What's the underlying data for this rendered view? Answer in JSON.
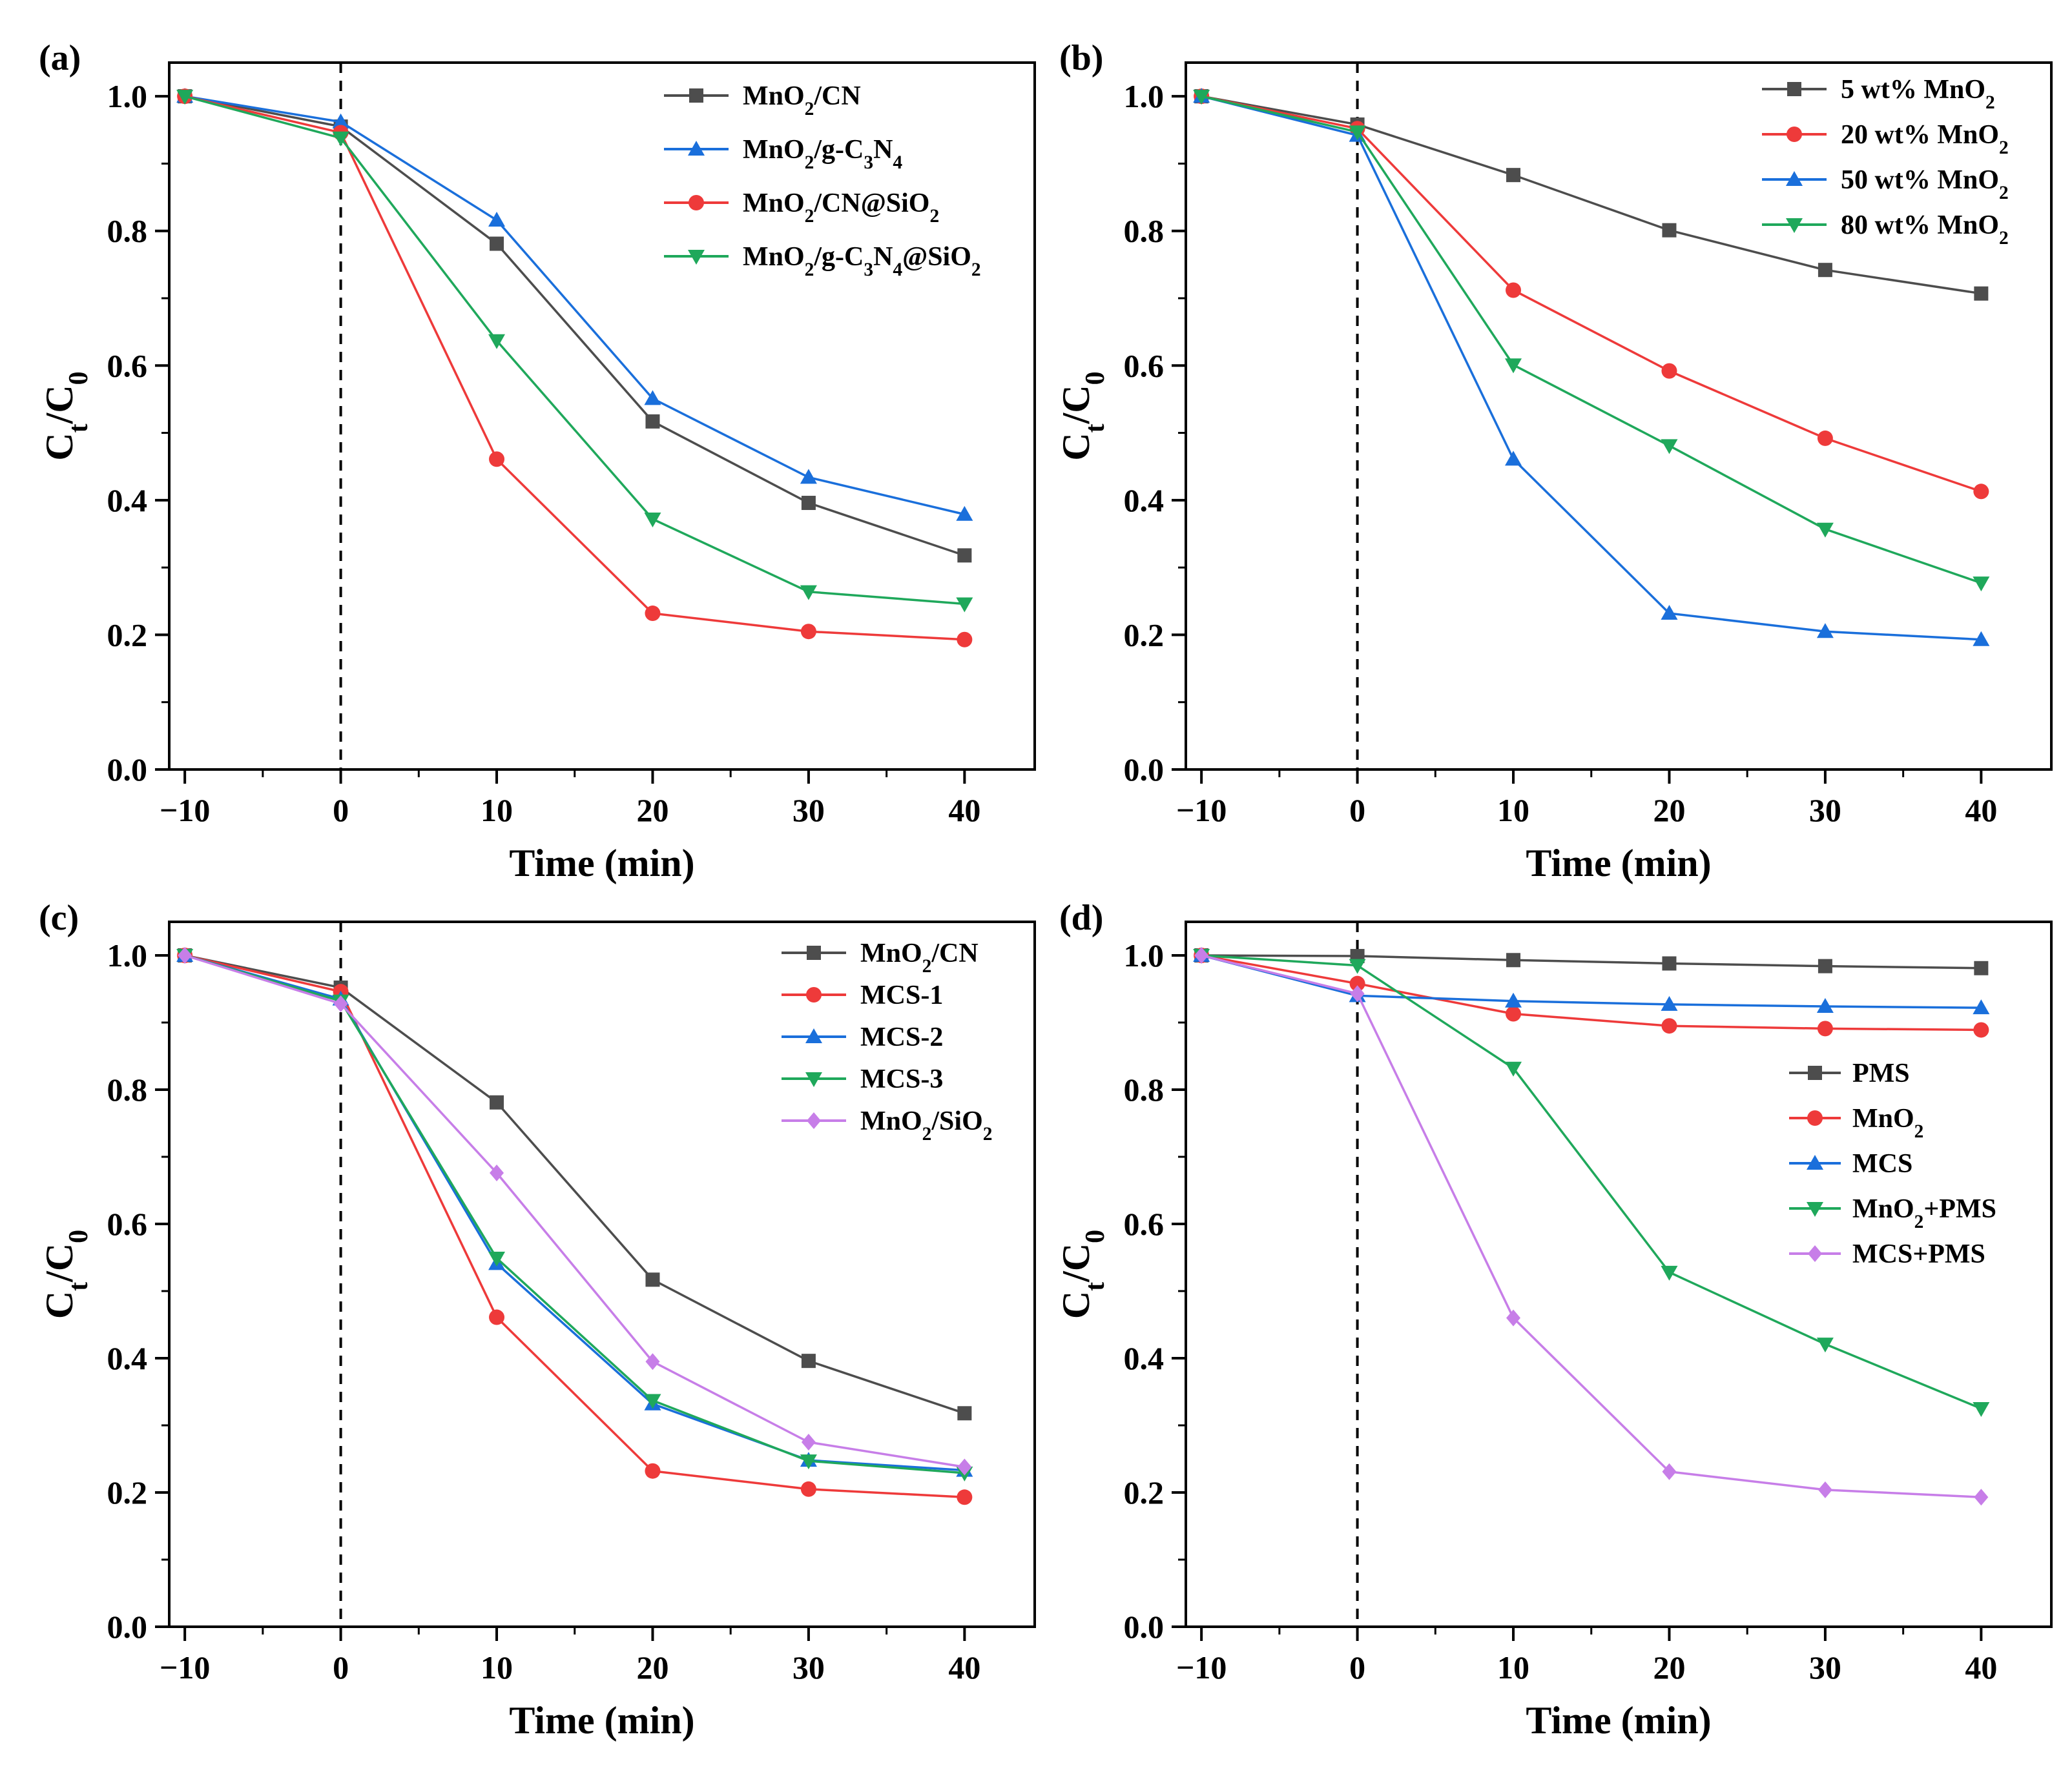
{
  "chart_data": [
    {
      "type": "line",
      "panel": "(a)",
      "xlabel": "Time (min)",
      "ylabel": "Ct/C0",
      "x": [
        -10,
        0,
        10,
        20,
        30,
        40
      ],
      "xlim": [
        -11,
        44.5
      ],
      "ylim": [
        0,
        1.05
      ],
      "xticks": [
        -10,
        0,
        10,
        20,
        30,
        40
      ],
      "yticks": [
        0.0,
        0.2,
        0.4,
        0.6,
        0.8,
        1.0
      ],
      "legend_position": "top-right",
      "series": [
        {
          "name": "MnO2/CN",
          "color": "#4d4d4d",
          "marker": "square",
          "values": [
            1.0,
            0.955,
            0.781,
            0.517,
            0.396,
            0.318
          ]
        },
        {
          "name": "MnO2/g-C3N4",
          "color": "#1a6fdb",
          "marker": "triangle-up",
          "values": [
            1.0,
            0.962,
            0.816,
            0.551,
            0.434,
            0.379
          ]
        },
        {
          "name": "MnO2/CN@SiO2",
          "color": "#ee3a3a",
          "marker": "circle",
          "values": [
            1.0,
            0.946,
            0.461,
            0.232,
            0.205,
            0.193
          ]
        },
        {
          "name": "MnO2/g-C3N4@SiO2",
          "color": "#1fa85b",
          "marker": "triangle-down",
          "values": [
            1.0,
            0.938,
            0.637,
            0.372,
            0.264,
            0.246
          ]
        }
      ]
    },
    {
      "type": "line",
      "panel": "(b)",
      "xlabel": "Time (min)",
      "ylabel": "Ct/C0",
      "x": [
        -10,
        0,
        10,
        20,
        30,
        40
      ],
      "xlim": [
        -11,
        44.5
      ],
      "ylim": [
        0,
        1.05
      ],
      "xticks": [
        -10,
        0,
        10,
        20,
        30,
        40
      ],
      "yticks": [
        0.0,
        0.2,
        0.4,
        0.6,
        0.8,
        1.0
      ],
      "legend_position": "top-right",
      "series": [
        {
          "name": "5 wt% MnO2",
          "color": "#4d4d4d",
          "marker": "square",
          "values": [
            1.0,
            0.958,
            0.883,
            0.801,
            0.742,
            0.707
          ]
        },
        {
          "name": "20 wt% MnO2",
          "color": "#ee3a3a",
          "marker": "circle",
          "values": [
            1.0,
            0.952,
            0.712,
            0.592,
            0.492,
            0.413
          ]
        },
        {
          "name": "50 wt% MnO2",
          "color": "#1a6fdb",
          "marker": "triangle-up",
          "values": [
            1.0,
            0.942,
            0.461,
            0.232,
            0.205,
            0.193
          ]
        },
        {
          "name": "80 wt% MnO2",
          "color": "#1fa85b",
          "marker": "triangle-down",
          "values": [
            1.0,
            0.947,
            0.601,
            0.481,
            0.357,
            0.277
          ]
        }
      ]
    },
    {
      "type": "line",
      "panel": "(c)",
      "xlabel": "Time (min)",
      "ylabel": "Ct/C0",
      "x": [
        -10,
        0,
        10,
        20,
        30,
        40
      ],
      "xlim": [
        -11,
        44.5
      ],
      "ylim": [
        0,
        1.05
      ],
      "xticks": [
        -10,
        0,
        10,
        20,
        30,
        40
      ],
      "yticks": [
        0.0,
        0.2,
        0.4,
        0.6,
        0.8,
        1.0
      ],
      "legend_position": "top-right",
      "series": [
        {
          "name": "MnO2/CN",
          "color": "#4d4d4d",
          "marker": "square",
          "values": [
            1.0,
            0.952,
            0.781,
            0.517,
            0.396,
            0.318
          ]
        },
        {
          "name": "MCS-1",
          "color": "#ee3a3a",
          "marker": "circle",
          "values": [
            1.0,
            0.946,
            0.461,
            0.232,
            0.205,
            0.193
          ]
        },
        {
          "name": "MCS-2",
          "color": "#1a6fdb",
          "marker": "triangle-up",
          "values": [
            1.0,
            0.935,
            0.541,
            0.332,
            0.248,
            0.233
          ]
        },
        {
          "name": "MCS-3",
          "color": "#1fa85b",
          "marker": "triangle-down",
          "values": [
            1.0,
            0.932,
            0.549,
            0.337,
            0.247,
            0.229
          ]
        },
        {
          "name": "MnO2/SiO2",
          "color": "#c77ee8",
          "marker": "diamond",
          "values": [
            1.0,
            0.928,
            0.676,
            0.395,
            0.275,
            0.238
          ]
        }
      ]
    },
    {
      "type": "line",
      "panel": "(d)",
      "xlabel": "Time (min)",
      "ylabel": "Ct/C0",
      "x": [
        -10,
        0,
        10,
        20,
        30,
        40
      ],
      "xlim": [
        -11,
        44.5
      ],
      "ylim": [
        0,
        1.05
      ],
      "xticks": [
        -10,
        0,
        10,
        20,
        30,
        40
      ],
      "yticks": [
        0.0,
        0.2,
        0.4,
        0.6,
        0.8,
        1.0
      ],
      "legend_position": "center-right",
      "series": [
        {
          "name": "PMS",
          "color": "#4d4d4d",
          "marker": "square",
          "values": [
            1.0,
            0.999,
            0.993,
            0.988,
            0.984,
            0.981
          ]
        },
        {
          "name": "MnO2",
          "color": "#ee3a3a",
          "marker": "circle",
          "values": [
            1.0,
            0.958,
            0.913,
            0.895,
            0.891,
            0.889
          ]
        },
        {
          "name": "MCS",
          "color": "#1a6fdb",
          "marker": "triangle-up",
          "values": [
            1.0,
            0.94,
            0.932,
            0.927,
            0.924,
            0.922
          ]
        },
        {
          "name": "MnO2+PMS",
          "color": "#1fa85b",
          "marker": "triangle-down",
          "values": [
            1.0,
            0.985,
            0.832,
            0.528,
            0.421,
            0.325
          ]
        },
        {
          "name": "MCS+PMS",
          "color": "#c77ee8",
          "marker": "diamond",
          "values": [
            1.0,
            0.943,
            0.46,
            0.231,
            0.204,
            0.193
          ]
        }
      ]
    }
  ]
}
